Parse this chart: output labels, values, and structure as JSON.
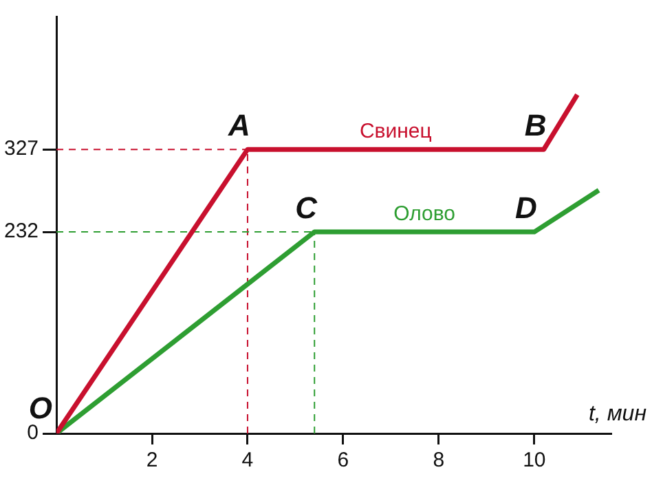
{
  "chart_data": {
    "type": "line",
    "xlabel": "t, мин",
    "series": [
      {
        "name": "Свинец",
        "color": "#c8102e",
        "x": [
          0,
          4,
          10.2,
          10.9
        ],
        "values": [
          0,
          327,
          327,
          390
        ]
      },
      {
        "name": "Олово",
        "color": "#2e9e32",
        "x": [
          0,
          5.4,
          10,
          11.35
        ],
        "values": [
          0,
          232,
          232,
          280
        ]
      }
    ],
    "xlim": [
      0,
      11.6
    ],
    "ylim": [
      0,
      480
    ],
    "xticks": [
      2,
      4,
      6,
      8,
      10
    ],
    "yticks": [
      0,
      232,
      327
    ],
    "ref_lines": [
      {
        "axis": "y",
        "value": 327,
        "color": "#c8102e",
        "line_style": "dashed"
      },
      {
        "axis": "x",
        "value": 4,
        "color": "#c8102e",
        "line_style": "dashed"
      },
      {
        "axis": "y",
        "value": 232,
        "color": "#2e9e32",
        "line_style": "dashed"
      },
      {
        "axis": "x",
        "value": 5.4,
        "color": "#2e9e32",
        "line_style": "dashed"
      }
    ],
    "annotations": [
      {
        "text": "O",
        "x": 0,
        "y": 0
      },
      {
        "text": "A",
        "x": 4,
        "y": 327
      },
      {
        "text": "B",
        "x": 10.2,
        "y": 327
      },
      {
        "text": "C",
        "x": 5.4,
        "y": 232
      },
      {
        "text": "D",
        "x": 10,
        "y": 232
      }
    ],
    "grid": false,
    "legend": false,
    "marker": "none",
    "line_style": "solid"
  }
}
